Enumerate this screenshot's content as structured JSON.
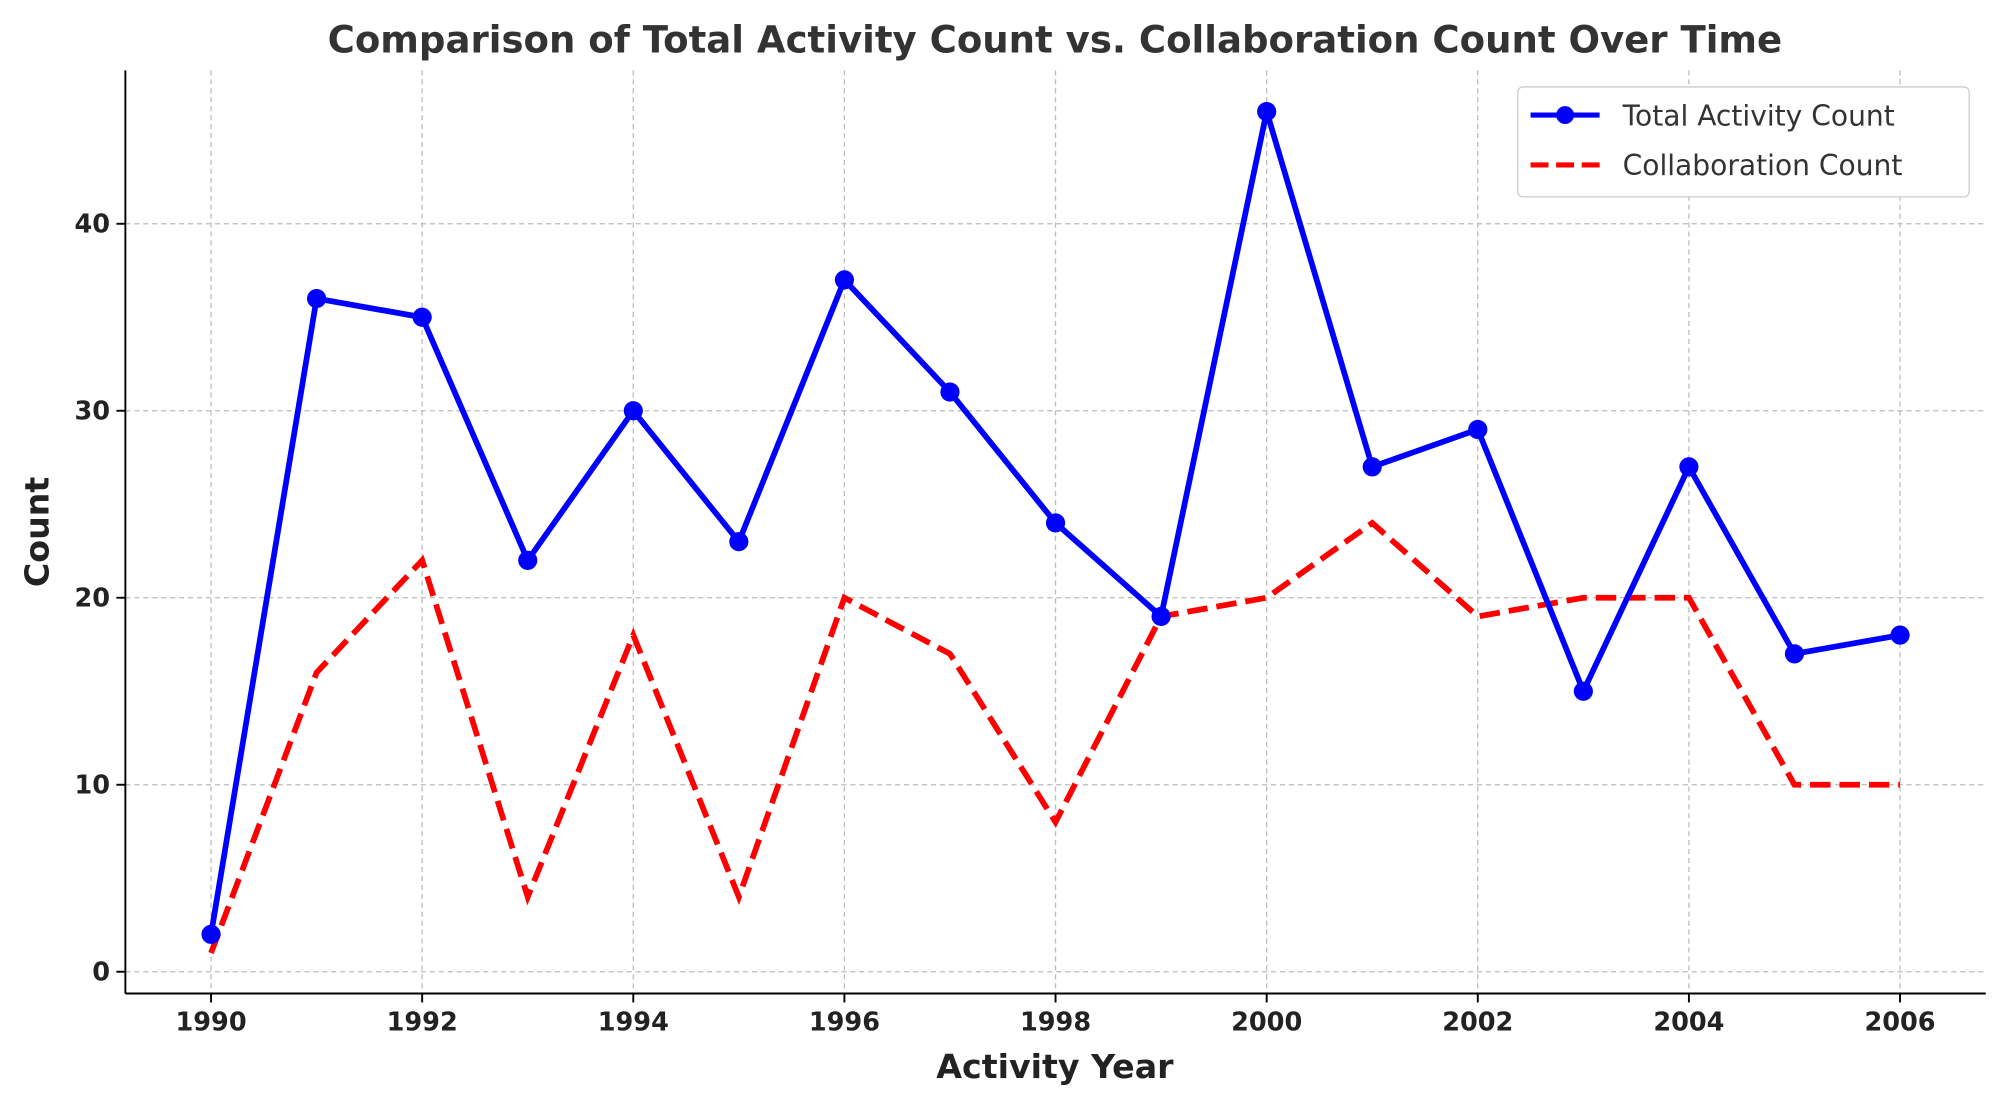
{
  "chart_data": {
    "type": "line",
    "title": "Comparison of Total Activity Count vs. Collaboration Count Over Time",
    "xlabel": "Activity Year",
    "ylabel": "Count",
    "x": [
      1990,
      1991,
      1992,
      1993,
      1994,
      1995,
      1996,
      1997,
      1998,
      1999,
      2000,
      2001,
      2002,
      2003,
      2004,
      2005,
      2006
    ],
    "xticks": [
      "1990",
      "1992",
      "1994",
      "1996",
      "1998",
      "2000",
      "2002",
      "2004",
      "2006"
    ],
    "yticks": [
      "0",
      "10",
      "20",
      "30",
      "40"
    ],
    "xlim": [
      1989.2,
      2006.8
    ],
    "ylim": [
      -1.2,
      48.3
    ],
    "grid": true,
    "legend_position": "top-right",
    "series": [
      {
        "name": "Total Activity Count",
        "color": "#0000ff",
        "style": "solid-with-markers",
        "values": [
          2,
          36,
          35,
          22,
          30,
          23,
          37,
          31,
          24,
          19,
          46,
          27,
          29,
          15,
          27,
          17,
          18
        ]
      },
      {
        "name": "Collaboration Count",
        "color": "#ff0000",
        "style": "dashed",
        "values": [
          1,
          16,
          22,
          4,
          18,
          4,
          20,
          17,
          8,
          19,
          20,
          24,
          19,
          20,
          20,
          10,
          10
        ]
      }
    ]
  }
}
